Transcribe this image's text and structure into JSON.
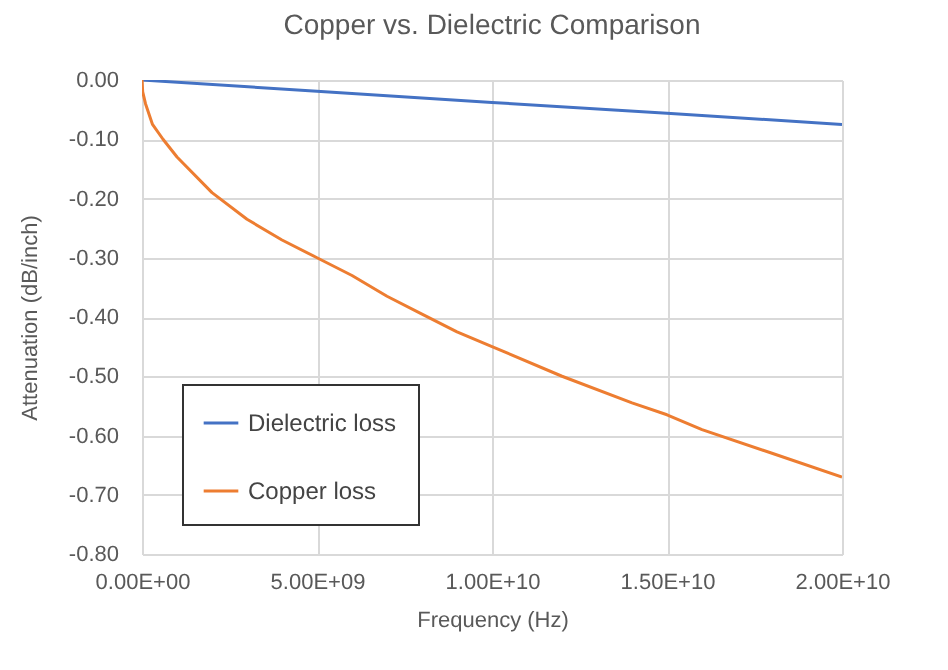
{
  "chart_data": {
    "type": "line",
    "title": "Copper vs. Dielectric Comparison",
    "xlabel": "Frequency (Hz)",
    "ylabel": "Attenuation (dB/inch)",
    "series": [
      {
        "name": "Dielectric loss",
        "color": "#4472c4",
        "x": [
          0,
          5000000000,
          10000000000,
          15000000000,
          20000000000
        ],
        "values": [
          0,
          -0.019,
          -0.038,
          -0.056,
          -0.075
        ]
      },
      {
        "name": "Copper loss",
        "color": "#ed7d31",
        "x": [
          0,
          20000000,
          100000000,
          300000000,
          600000000,
          1000000000,
          2000000000,
          3000000000,
          4000000000,
          5000000000,
          6000000000,
          7000000000,
          8000000000,
          9000000000,
          10000000000,
          12000000000,
          14000000000,
          15000000000,
          16000000000,
          18000000000,
          20000000000
        ],
        "values": [
          0,
          -0.02,
          -0.04,
          -0.075,
          -0.1,
          -0.13,
          -0.19,
          -0.235,
          -0.27,
          -0.3,
          -0.33,
          -0.365,
          -0.395,
          -0.425,
          -0.45,
          -0.5,
          -0.545,
          -0.565,
          -0.59,
          -0.63,
          -0.67
        ]
      }
    ],
    "xlim": [
      0,
      20000000000
    ],
    "xticks": [
      {
        "value": 0,
        "label": "0.00E+00"
      },
      {
        "value": 5000000000,
        "label": "5.00E+09"
      },
      {
        "value": 10000000000,
        "label": "1.00E+10"
      },
      {
        "value": 15000000000,
        "label": "1.50E+10"
      },
      {
        "value": 20000000000,
        "label": "2.00E+10"
      }
    ],
    "ylim": [
      -0.8,
      0
    ],
    "yticks": [
      {
        "value": -0.8,
        "label": "-0.80"
      },
      {
        "value": -0.7,
        "label": "-0.70"
      },
      {
        "value": -0.6,
        "label": "-0.60"
      },
      {
        "value": -0.5,
        "label": "-0.50"
      },
      {
        "value": -0.4,
        "label": "-0.40"
      },
      {
        "value": -0.3,
        "label": "-0.30"
      },
      {
        "value": -0.2,
        "label": "-0.20"
      },
      {
        "value": -0.1,
        "label": "-0.10"
      },
      {
        "value": 0,
        "label": "0.00"
      }
    ],
    "grid": true,
    "legend": "bottom left",
    "line_style": "solid"
  }
}
